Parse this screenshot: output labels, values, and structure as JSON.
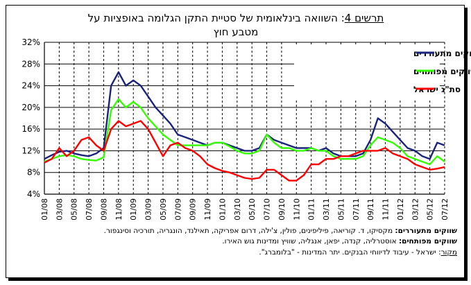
{
  "title": {
    "prefix": "תרשים 4",
    "line1": ": השוואה בינלאומית של סטיית התקן הגלומה באופציות על",
    "line2": "מטבע חוץ"
  },
  "notes": {
    "emerging_label": "שווקים מתעוררים:",
    "emerging_text": " מקסיקו, ד. קוריאה, פיליפינים, פולין, צ'ילה, דרום אפריקה, תאילנד, הונגריה, תורכיה וסינגפור.",
    "developed_label": "שווקים מפותחים:",
    "developed_text": " אוסטרליה, קנדה, יפאן, אנגליה, שוויץ ומדינות גוש האירו.",
    "source_label": "מקור",
    "source_text": ": ישראל - עיבוד לדיווחי הבנקים. יתר המדינות - \"בלומברג\"."
  },
  "colors": {
    "emerging": "#1a237e",
    "developed": "#33ff00",
    "israel": "#ff0000",
    "grid": "#000000"
  },
  "chart_data": {
    "type": "line",
    "ylim": [
      4,
      32
    ],
    "yticks": [
      "4%",
      "8%",
      "12%",
      "16%",
      "20%",
      "24%",
      "28%",
      "32%"
    ],
    "ytick_values": [
      4,
      8,
      12,
      16,
      20,
      24,
      28,
      32
    ],
    "x_tick_labels": [
      "01/08",
      "03/08",
      "05/08",
      "07/08",
      "09/08",
      "11/08",
      "01/09",
      "03/09",
      "05/09",
      "07/09",
      "09/09",
      "11/09",
      "01/10",
      "03/10",
      "05/10",
      "07/10",
      "09/10",
      "11/10",
      "01/11",
      "03/11",
      "05/11",
      "07/11",
      "09/11",
      "11/11",
      "01/12",
      "03/12",
      "05/12",
      "07/12"
    ],
    "x_months": [
      "01/08",
      "02/08",
      "03/08",
      "04/08",
      "05/08",
      "06/08",
      "07/08",
      "08/08",
      "09/08",
      "10/08",
      "11/08",
      "12/08",
      "01/09",
      "02/09",
      "03/09",
      "04/09",
      "05/09",
      "06/09",
      "07/09",
      "08/09",
      "09/09",
      "10/09",
      "11/09",
      "12/09",
      "01/10",
      "02/10",
      "03/10",
      "04/10",
      "05/10",
      "06/10",
      "07/10",
      "08/10",
      "09/10",
      "10/10",
      "11/10",
      "12/10",
      "01/11",
      "02/11",
      "03/11",
      "04/11",
      "05/11",
      "06/11",
      "07/11",
      "08/11",
      "09/11",
      "10/11",
      "11/11",
      "12/11",
      "01/12",
      "02/12",
      "03/12",
      "04/12",
      "05/12",
      "06/12",
      "07/12"
    ],
    "legend_position": "top-right",
    "series": [
      {
        "name": "ממוצע שווקים מתעוררים",
        "color_key": "emerging",
        "values": [
          10.5,
          11.2,
          11.8,
          12.0,
          11.5,
          11.2,
          11.0,
          11.5,
          12.5,
          24.0,
          26.5,
          24.0,
          25.0,
          24.0,
          22.0,
          20.0,
          18.5,
          17.0,
          15.0,
          14.5,
          14.0,
          13.5,
          13.0,
          13.5,
          13.5,
          13.0,
          12.5,
          12.0,
          12.0,
          12.5,
          15.0,
          14.0,
          13.5,
          13.0,
          12.5,
          12.5,
          12.5,
          12.0,
          12.5,
          11.5,
          11.0,
          11.0,
          11.0,
          11.5,
          14.0,
          18.0,
          17.0,
          15.5,
          14.0,
          12.5,
          12.0,
          11.0,
          10.5,
          13.5,
          13.0
        ]
      },
      {
        "name": "ממוצע שווקים מפותחים",
        "color_key": "developed",
        "values": [
          10.0,
          10.5,
          11.0,
          11.2,
          11.0,
          10.5,
          10.3,
          10.2,
          10.8,
          19.5,
          21.5,
          20.0,
          21.0,
          20.0,
          18.0,
          16.5,
          15.0,
          14.0,
          13.0,
          13.0,
          13.0,
          13.0,
          13.0,
          13.5,
          13.5,
          12.8,
          12.0,
          11.5,
          11.5,
          12.0,
          15.0,
          13.5,
          12.5,
          12.5,
          12.0,
          12.0,
          12.5,
          12.0,
          12.0,
          11.0,
          10.5,
          10.5,
          10.5,
          11.0,
          13.0,
          14.5,
          14.0,
          13.5,
          12.5,
          11.0,
          10.5,
          10.0,
          9.5,
          11.0,
          10.0
        ]
      },
      {
        "name": "סת\"ג ישראל",
        "color_key": "israel",
        "values": [
          9.8,
          10.5,
          12.5,
          11.0,
          12.0,
          14.0,
          14.5,
          13.0,
          12.0,
          16.0,
          17.5,
          16.5,
          17.0,
          17.5,
          16.0,
          13.5,
          11.0,
          13.0,
          13.5,
          12.5,
          12.0,
          11.0,
          9.5,
          8.8,
          8.3,
          8.0,
          7.5,
          7.0,
          6.8,
          7.0,
          8.5,
          8.5,
          7.5,
          6.5,
          6.5,
          7.5,
          9.5,
          9.5,
          10.5,
          10.5,
          11.0,
          11.0,
          11.5,
          12.0,
          12.0,
          12.0,
          12.5,
          11.5,
          11.0,
          10.5,
          9.5,
          9.0,
          8.5,
          8.7,
          9.0
        ]
      }
    ]
  }
}
